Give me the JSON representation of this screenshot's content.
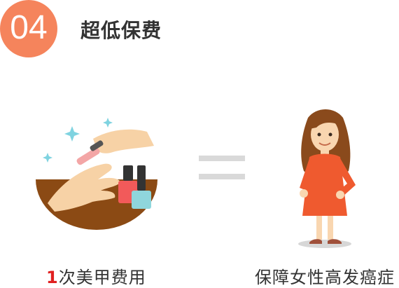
{
  "badge": {
    "number": "04"
  },
  "title": "超低保费",
  "captions": {
    "left_number": "1",
    "left_text": "次美甲费用",
    "right_text": "保障女性高发癌症"
  },
  "colors": {
    "badge": "#f5845c",
    "table": "#8b4a14",
    "highlight_number": "#e02020",
    "equals": "#d9d9d9",
    "dress": "#ef5a2f"
  },
  "icons": [
    "manicure-illustration-icon",
    "equals-sign-icon",
    "girl-illustration-icon"
  ]
}
